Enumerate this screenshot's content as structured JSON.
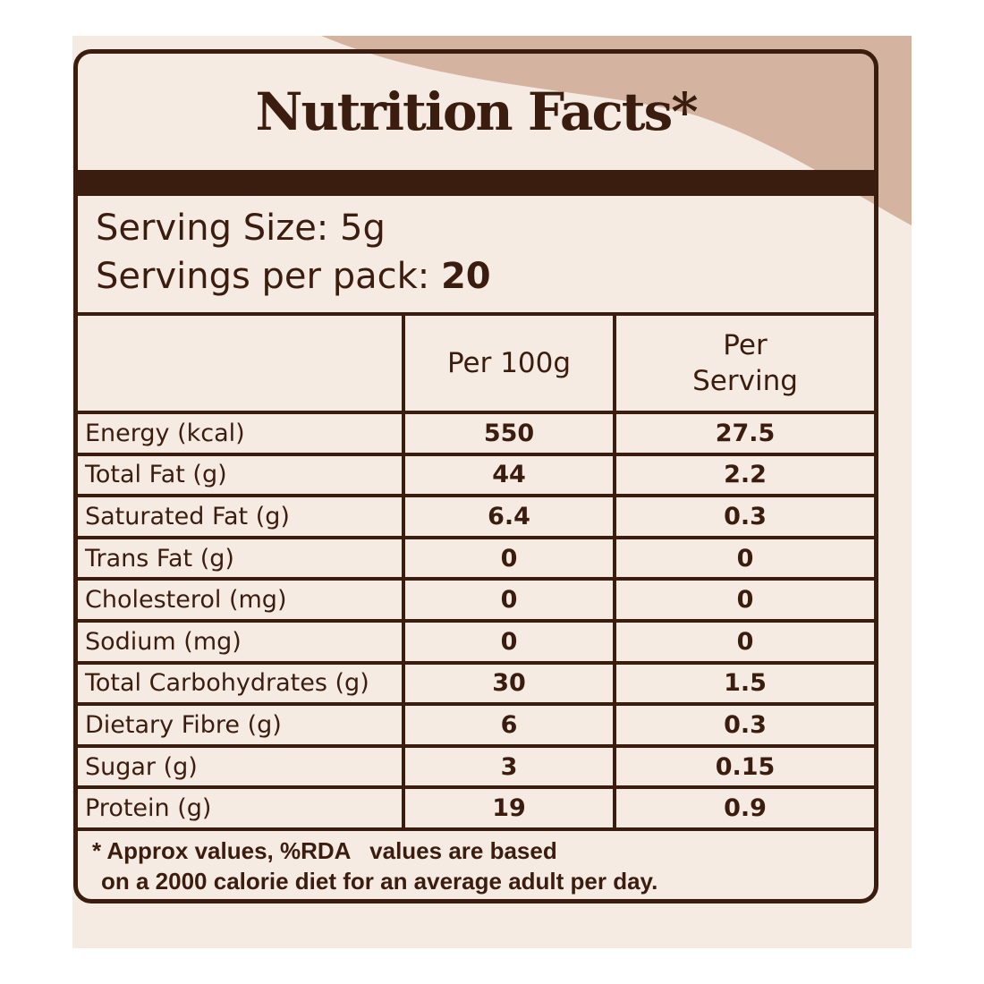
{
  "label": {
    "title": "Nutrition Facts*",
    "serving_size_label": "Serving Size: 5g",
    "servings_per_pack_label": "Servings per pack:",
    "servings_per_pack_value": "20",
    "columns": {
      "nutrient": "",
      "per_100g": "Per 100g",
      "per_serving_line1": "Per",
      "per_serving_line2": "Serving"
    },
    "rows": [
      {
        "name": "Energy (kcal)",
        "per_100g": "550",
        "per_serving": "27.5"
      },
      {
        "name": "Total Fat (g)",
        "per_100g": "44",
        "per_serving": "2.2"
      },
      {
        "name": "Saturated Fat (g)",
        "per_100g": "6.4",
        "per_serving": "0.3"
      },
      {
        "name": "Trans Fat (g)",
        "per_100g": "0",
        "per_serving": "0"
      },
      {
        "name": "Cholesterol (mg)",
        "per_100g": "0",
        "per_serving": "0"
      },
      {
        "name": "Sodium (mg)",
        "per_100g": "0",
        "per_serving": "0"
      },
      {
        "name": "Total Carbohydrates (g)",
        "per_100g": "30",
        "per_serving": "1.5"
      },
      {
        "name": "Dietary Fibre (g)",
        "per_100g": "6",
        "per_serving": "0.3"
      },
      {
        "name": "Sugar (g)",
        "per_100g": "3",
        "per_serving": "0.15"
      },
      {
        "name": "Protein (g)",
        "per_100g": "19",
        "per_serving": "0.9"
      }
    ],
    "footnote_line1": "* Approx values, %RDA   values are based",
    "footnote_line2": "on a 2000 calorie diet for an average adult per day."
  },
  "colors": {
    "ink": "#3b1d10",
    "background": "#f5ebe2",
    "accent_wave": "#d4b4a0"
  }
}
